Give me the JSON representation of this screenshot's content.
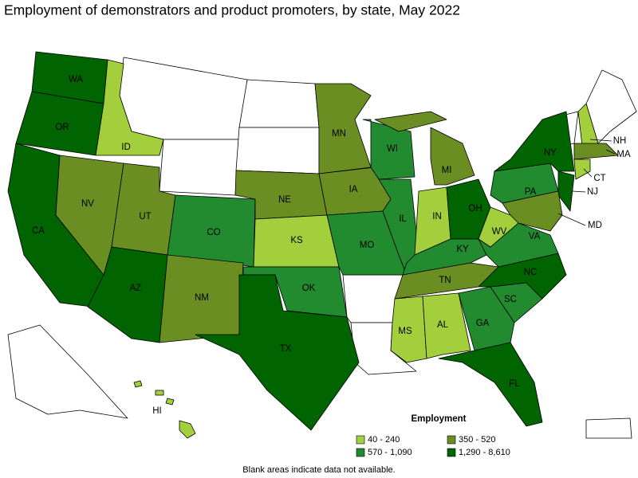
{
  "title": "Employment of demonstrators and product promoters, by state, May 2022",
  "legend": {
    "title": "Employment",
    "items": [
      {
        "label": "40 - 240",
        "color": "#a4cf3c"
      },
      {
        "label": "350 - 520",
        "color": "#6b8e23"
      },
      {
        "label": "570 - 1,090",
        "color": "#228b30"
      },
      {
        "label": "1,290 - 8,610",
        "color": "#006400"
      }
    ]
  },
  "note": "Blank areas indicate data not available.",
  "states": [
    {
      "label": "WA",
      "color": "#006400"
    },
    {
      "label": "OR",
      "color": "#006400"
    },
    {
      "label": "CA",
      "color": "#006400"
    },
    {
      "label": "ID",
      "color": "#a4cf3c"
    },
    {
      "label": "NV",
      "color": "#6b8e23"
    },
    {
      "label": "UT",
      "color": "#6b8e23"
    },
    {
      "label": "AZ",
      "color": "#006400"
    },
    {
      "label": "CO",
      "color": "#228b30"
    },
    {
      "label": "NM",
      "color": "#6b8e23"
    },
    {
      "label": "NE",
      "color": "#6b8e23"
    },
    {
      "label": "KS",
      "color": "#a4cf3c"
    },
    {
      "label": "OK",
      "color": "#228b30"
    },
    {
      "label": "TX",
      "color": "#006400"
    },
    {
      "label": "MN",
      "color": "#6b8e23"
    },
    {
      "label": "IA",
      "color": "#6b8e23"
    },
    {
      "label": "MO",
      "color": "#228b30"
    },
    {
      "label": "WI",
      "color": "#228b30"
    },
    {
      "label": "IL",
      "color": "#228b30"
    },
    {
      "label": "MI",
      "color": "#6b8e23"
    },
    {
      "label": "IN",
      "color": "#a4cf3c"
    },
    {
      "label": "OH",
      "color": "#006400"
    },
    {
      "label": "KY",
      "color": "#228b30"
    },
    {
      "label": "TN",
      "color": "#6b8e23"
    },
    {
      "label": "MS",
      "color": "#a4cf3c"
    },
    {
      "label": "AL",
      "color": "#a4cf3c"
    },
    {
      "label": "GA",
      "color": "#228b30"
    },
    {
      "label": "FL",
      "color": "#006400"
    },
    {
      "label": "SC",
      "color": "#228b30"
    },
    {
      "label": "NC",
      "color": "#006400"
    },
    {
      "label": "VA",
      "color": "#228b30"
    },
    {
      "label": "WV",
      "color": "#a4cf3c"
    },
    {
      "label": "PA",
      "color": "#228b30"
    },
    {
      "label": "NY",
      "color": "#006400"
    },
    {
      "label": "NJ",
      "color": "#006400"
    },
    {
      "label": "MD",
      "color": "#6b8e23"
    },
    {
      "label": "NH",
      "color": "#a4cf3c"
    },
    {
      "label": "MA",
      "color": "#6b8e23"
    },
    {
      "label": "CT",
      "color": "#a4cf3c"
    },
    {
      "label": "HI",
      "color": "#a4cf3c"
    }
  ]
}
